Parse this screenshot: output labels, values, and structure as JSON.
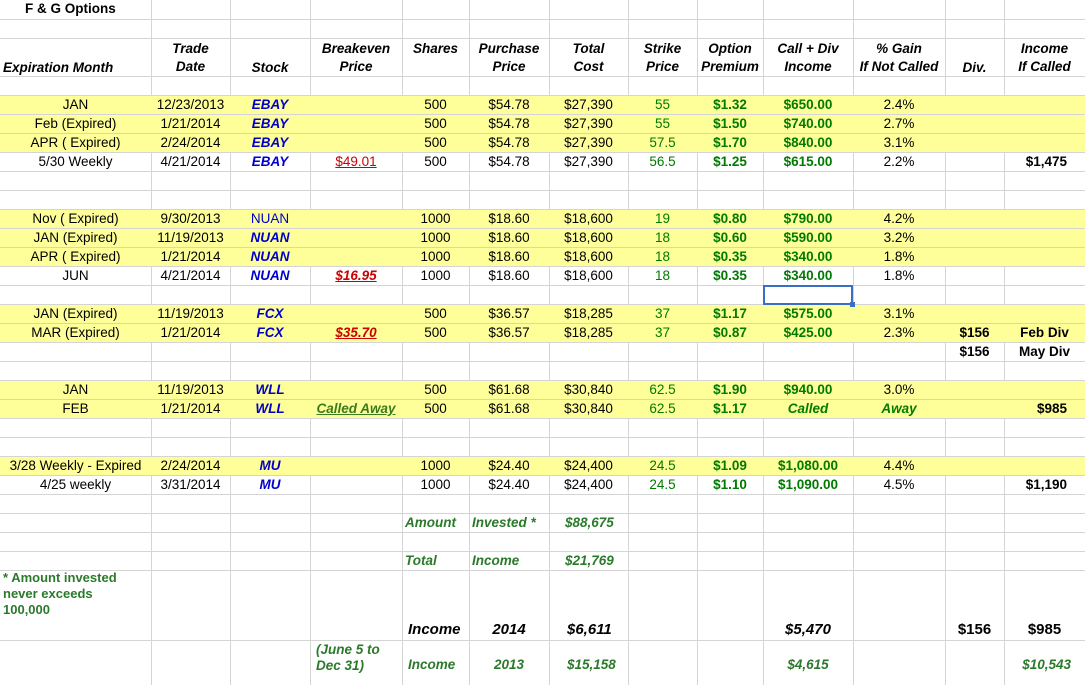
{
  "sheet_title": "F & G Options",
  "headers": {
    "expiration": [
      "",
      "Expiration Month"
    ],
    "trade_date": [
      "Trade",
      "Date"
    ],
    "stock": [
      "",
      "Stock"
    ],
    "breakeven": [
      "Breakeven",
      "Price"
    ],
    "shares": [
      "Shares",
      ""
    ],
    "purchase": [
      "Purchase",
      "Price"
    ],
    "total_cost": [
      "Total",
      "Cost"
    ],
    "strike": [
      "Strike",
      "Price"
    ],
    "premium": [
      "Option",
      "Premium"
    ],
    "call_div": [
      "Call + Div",
      "Income"
    ],
    "gain": [
      "% Gain",
      "If Not Called"
    ],
    "div": [
      "",
      "Div."
    ],
    "income_called": [
      "Income",
      "If Called"
    ]
  },
  "rows": [
    {
      "expiration": "JAN",
      "trade_date": "12/23/2013",
      "stock": "EBAY",
      "breakeven": "",
      "shares": "500",
      "purchase": "$54.78",
      "total_cost": "$27,390",
      "strike": "55",
      "premium": "$1.32",
      "call_div": "$650.00",
      "gain": "2.4%",
      "div": "",
      "income_called": ""
    },
    {
      "expiration": "Feb (Expired)",
      "trade_date": "1/21/2014",
      "stock": "EBAY",
      "breakeven": "",
      "shares": "500",
      "purchase": "$54.78",
      "total_cost": "$27,390",
      "strike": "55",
      "premium": "$1.50",
      "call_div": "$740.00",
      "gain": "2.7%",
      "div": "",
      "income_called": ""
    },
    {
      "expiration": "APR ( Expired)",
      "trade_date": "2/24/2014",
      "stock": "EBAY",
      "breakeven": "",
      "shares": "500",
      "purchase": "$54.78",
      "total_cost": "$27,390",
      "strike": "57.5",
      "premium": "$1.70",
      "call_div": "$840.00",
      "gain": "3.1%",
      "div": "",
      "income_called": ""
    },
    {
      "expiration": "5/30 Weekly",
      "trade_date": "4/21/2014",
      "stock": "EBAY",
      "breakeven": "$49.01",
      "shares": "500",
      "purchase": "$54.78",
      "total_cost": "$27,390",
      "strike": "56.5",
      "premium": "$1.25",
      "call_div": "$615.00",
      "gain": "2.2%",
      "div": "",
      "income_called": "$1,475"
    },
    {
      "expiration": "Nov ( Expired)",
      "trade_date": "9/30/2013",
      "stock": "NUAN",
      "breakeven": "",
      "shares": "1000",
      "purchase": "$18.60",
      "total_cost": "$18,600",
      "strike": "19",
      "premium": "$0.80",
      "call_div": "$790.00",
      "gain": "4.2%",
      "div": "",
      "income_called": ""
    },
    {
      "expiration": "JAN (Expired)",
      "trade_date": "11/19/2013",
      "stock": "NUAN",
      "breakeven": "",
      "shares": "1000",
      "purchase": "$18.60",
      "total_cost": "$18,600",
      "strike": "18",
      "premium": "$0.60",
      "call_div": "$590.00",
      "gain": "3.2%",
      "div": "",
      "income_called": ""
    },
    {
      "expiration": "APR ( Expired)",
      "trade_date": "1/21/2014",
      "stock": "NUAN",
      "breakeven": "",
      "shares": "1000",
      "purchase": "$18.60",
      "total_cost": "$18,600",
      "strike": "18",
      "premium": "$0.35",
      "call_div": "$340.00",
      "gain": "1.8%",
      "div": "",
      "income_called": ""
    },
    {
      "expiration": "JUN",
      "trade_date": "4/21/2014",
      "stock": "NUAN",
      "breakeven": "$16.95",
      "shares": "1000",
      "purchase": "$18.60",
      "total_cost": "$18,600",
      "strike": "18",
      "premium": "$0.35",
      "call_div": "$340.00",
      "gain": "1.8%",
      "div": "",
      "income_called": ""
    },
    {
      "expiration": "JAN (Expired)",
      "trade_date": "11/19/2013",
      "stock": "FCX",
      "breakeven": "",
      "shares": "500",
      "purchase": "$36.57",
      "total_cost": "$18,285",
      "strike": "37",
      "premium": "$1.17",
      "call_div": "$575.00",
      "gain": "3.1%",
      "div": "",
      "income_called": ""
    },
    {
      "expiration": "MAR (Expired)",
      "trade_date": "1/21/2014",
      "stock": "FCX",
      "breakeven": "$35.70",
      "shares": "500",
      "purchase": "$36.57",
      "total_cost": "$18,285",
      "strike": "37",
      "premium": "$0.87",
      "call_div": "$425.00",
      "gain": "2.3%",
      "div": "$156",
      "income_called": "Feb Div"
    },
    {
      "expiration": "",
      "trade_date": "",
      "stock": "",
      "breakeven": "",
      "shares": "",
      "purchase": "",
      "total_cost": "",
      "strike": "",
      "premium": "",
      "call_div": "",
      "gain": "",
      "div": "$156",
      "income_called": "May Div"
    },
    {
      "expiration": "JAN",
      "trade_date": "11/19/2013",
      "stock": "WLL",
      "breakeven": "",
      "shares": "500",
      "purchase": "$61.68",
      "total_cost": "$30,840",
      "strike": "62.5",
      "premium": "$1.90",
      "call_div": "$940.00",
      "gain": "3.0%",
      "div": "",
      "income_called": ""
    },
    {
      "expiration": "FEB",
      "trade_date": "1/21/2014",
      "stock": "WLL",
      "breakeven": "Called Away",
      "shares": "500",
      "purchase": "$61.68",
      "total_cost": "$30,840",
      "strike": "62.5",
      "premium": "$1.17",
      "call_div": "Called",
      "gain": "Away",
      "div": "",
      "income_called": "$985"
    },
    {
      "expiration": "3/28 Weekly - Expired",
      "trade_date": "2/24/2014",
      "stock": "MU",
      "breakeven": "",
      "shares": "1000",
      "purchase": "$24.40",
      "total_cost": "$24,400",
      "strike": "24.5",
      "premium": "$1.09",
      "call_div": "$1,080.00",
      "gain": "4.4%",
      "div": "",
      "income_called": ""
    },
    {
      "expiration": "4/25 weekly",
      "trade_date": "3/31/2014",
      "stock": "MU",
      "breakeven": "",
      "shares": "1000",
      "purchase": "$24.40",
      "total_cost": "$24,400",
      "strike": "24.5",
      "premium": "$1.10",
      "call_div": "$1,090.00",
      "gain": "4.5%",
      "div": "",
      "income_called": "$1,190"
    }
  ],
  "summary": {
    "amount_label_a": "Amount",
    "amount_label_b": "Invested *",
    "amount_value": "$88,675",
    "total_label_a": "Total",
    "total_label_b": "Income",
    "total_value": "$21,769",
    "footnote": "* Amount invested never exceeds 100,000",
    "income_2014_label": "Income",
    "income_2014_year": "2014",
    "income_2014_value": "$6,611",
    "income_2014_calldiv": "$5,470",
    "income_2014_div": "$156",
    "income_2014_called": "$985",
    "range_note": "(June 5 to Dec 31)",
    "income_2013_label": "Income",
    "income_2013_year": "2013",
    "income_2013_value": "$15,158",
    "income_2013_calldiv": "$4,615",
    "income_2013_called": "$10,543"
  },
  "colors": {
    "row_highlight": "#ffff99",
    "stock_blue": "#0000cc",
    "money_green": "#007a00",
    "breakeven_red": "#cc0000",
    "selection": "#3b6fc6"
  }
}
